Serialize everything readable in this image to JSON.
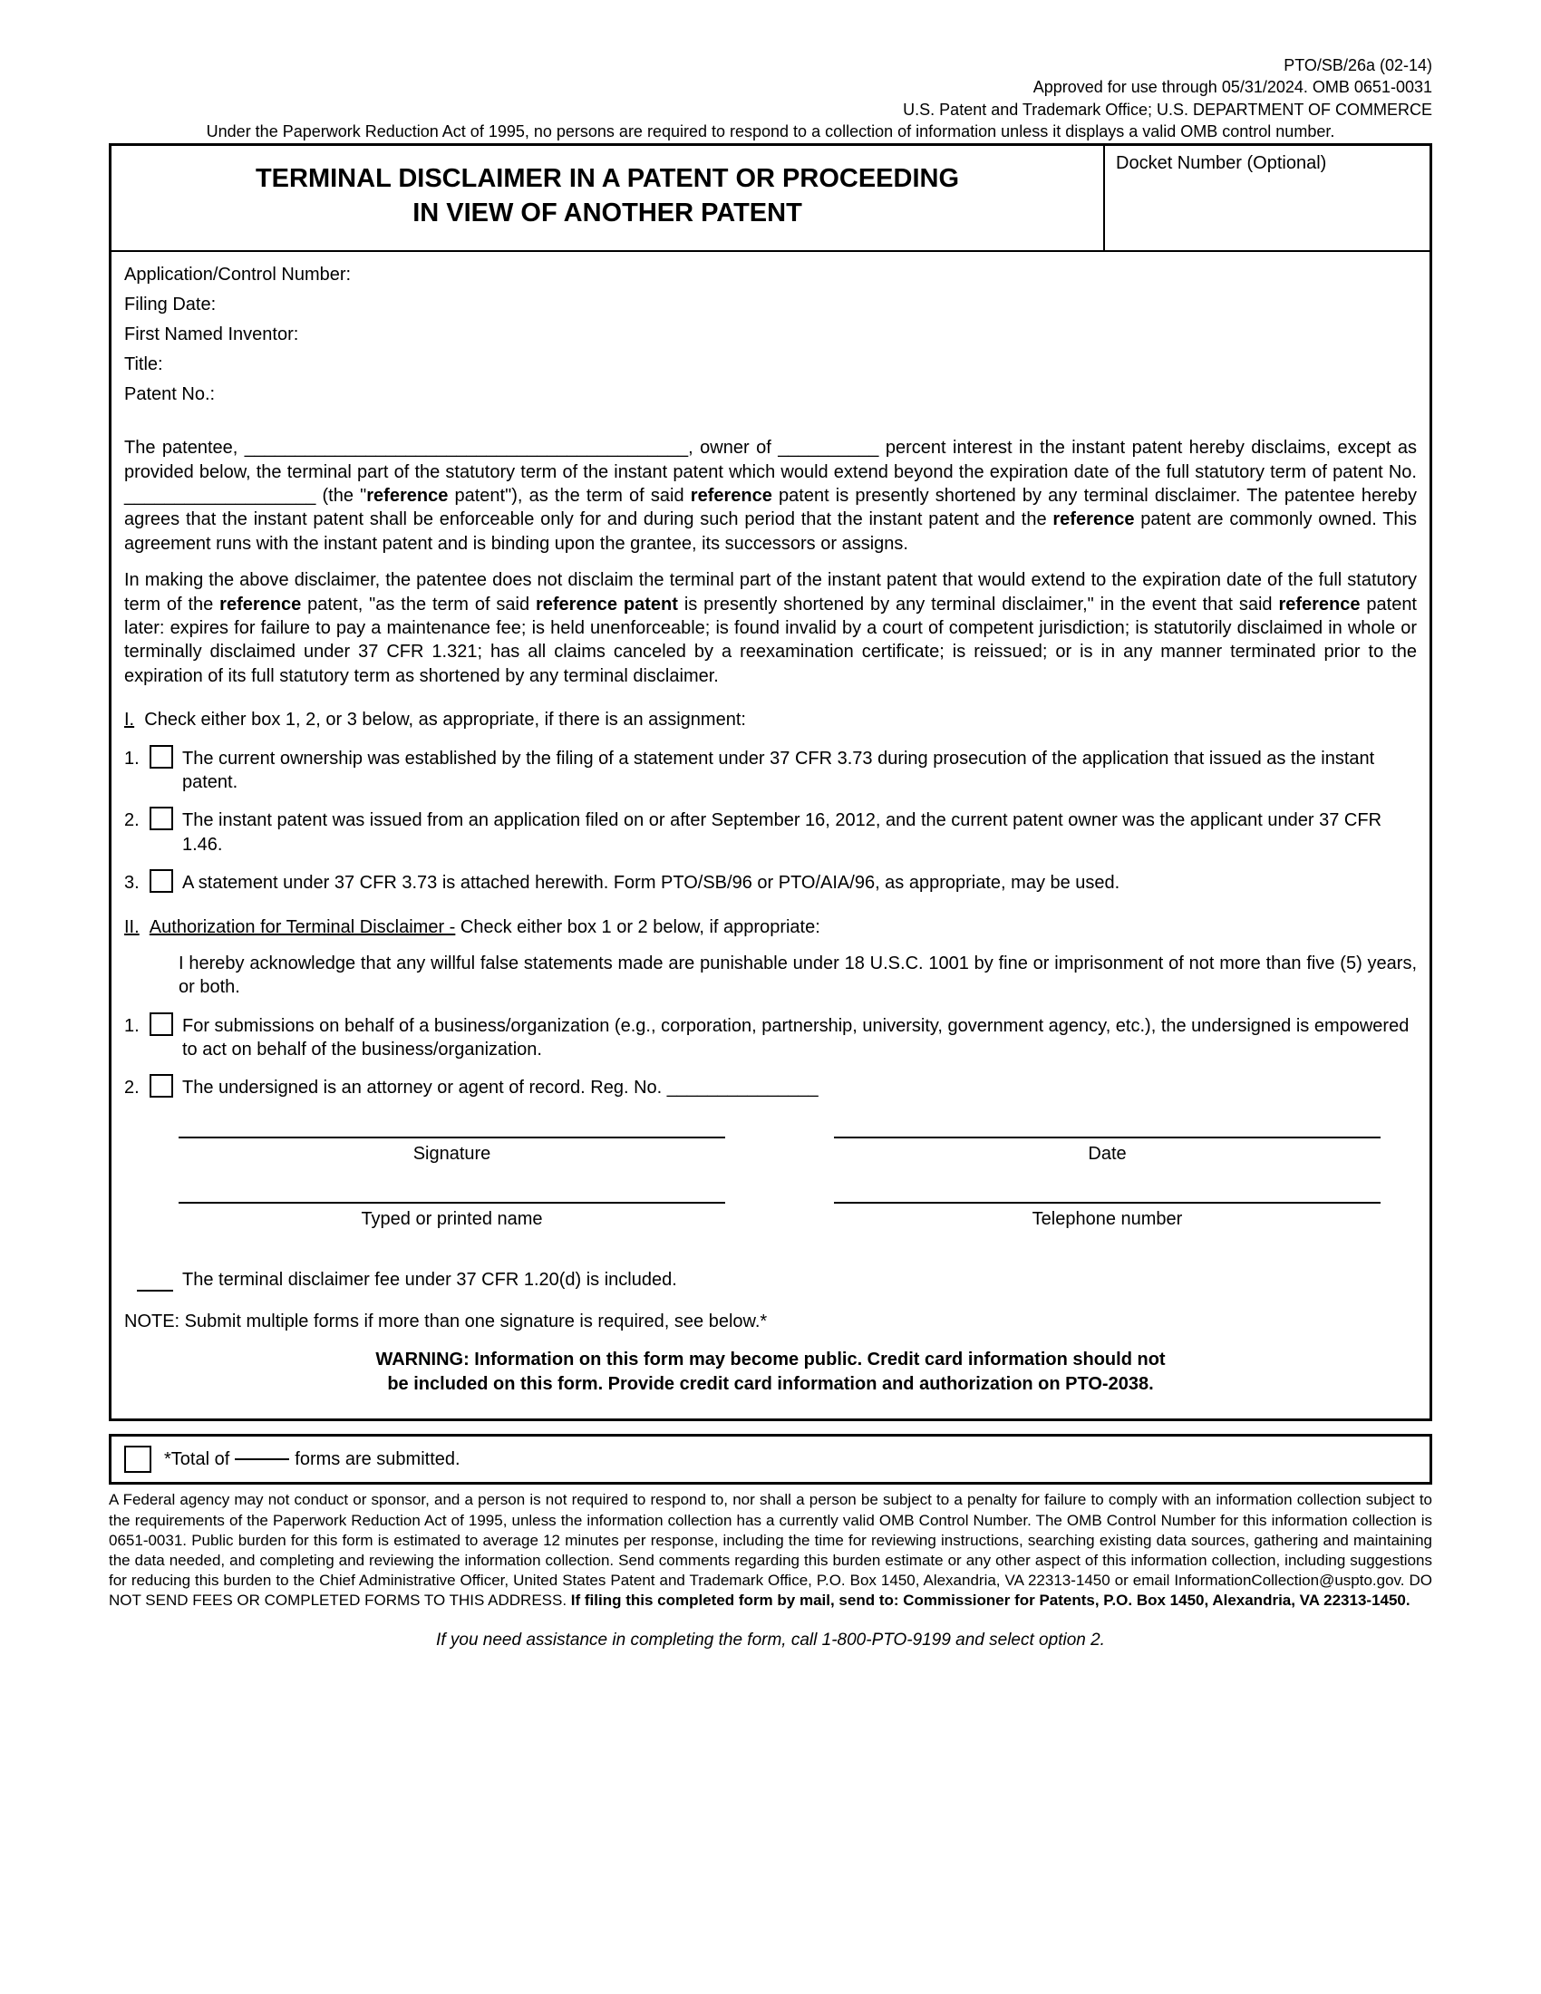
{
  "meta": {
    "form_id": "PTO/SB/26a (02-14)",
    "approved": "Approved for use through 05/31/2024. OMB 0651-0031",
    "office": "U.S. Patent and Trademark Office; U.S. DEPARTMENT OF COMMERCE",
    "pra": "Under the Paperwork Reduction Act of 1995, no persons are required to respond to a collection of information unless it displays a valid OMB control number."
  },
  "title": {
    "line1": "TERMINAL DISCLAIMER IN A PATENT OR PROCEEDING",
    "line2": "IN VIEW OF ANOTHER PATENT"
  },
  "docket_label": "Docket Number (Optional)",
  "fields": {
    "app": "Application/Control Number:",
    "filing": "Filing Date:",
    "inventor": "First Named Inventor:",
    "titlef": "Title:",
    "patent": "Patent No.:"
  },
  "para1_a": "The patentee, ____________________________________________, owner of __________ percent interest in the instant patent hereby disclaims, except as provided below, the terminal part of the statutory term of the instant patent which would extend beyond the expiration date of the full statutory term of patent No. ___________________ (the \"",
  "para1_ref": "reference",
  "para1_b": " patent\"), as the term of said ",
  "para1_c": " patent is presently shortened by any terminal disclaimer. The patentee hereby agrees that the instant patent shall be enforceable only for and during such period that the instant patent and the ",
  "para1_d": " patent are commonly owned. This agreement runs with the instant patent and is binding upon the grantee, its successors or assigns.",
  "para2_a": "In making the above disclaimer, the patentee does not disclaim the terminal part of the instant patent that would extend to the expiration date of the full statutory term of the ",
  "para2_b": " patent, \"as the term of said ",
  "para2_refpat": "reference patent",
  "para2_c": " is presently shortened by any terminal disclaimer,\" in the event that said ",
  "para2_d": " patent later: expires for failure to pay a maintenance fee; is held unenforceable; is found invalid by a court of competent jurisdiction; is statutorily disclaimed in whole or terminally disclaimed under 37 CFR 1.321; has all claims canceled by a reexamination certificate; is reissued; or is in any manner terminated prior to the expiration of its full statutory term as shortened by any terminal disclaimer.",
  "sectionI_head": "Check either box 1, 2, or 3 below, as appropriate, if there is an assignment:",
  "sectionI": {
    "opt1": "The current ownership was established by the filing of a statement under 37 CFR 3.73 during prosecution of the application that issued as the instant patent.",
    "opt2": "The instant patent was issued from an application filed on or after September 16, 2012, and the current patent owner was the applicant under 37 CFR 1.46.",
    "opt3": "A statement under 37 CFR 3.73 is attached herewith.  Form PTO/SB/96 or PTO/AIA/96, as appropriate, may be used."
  },
  "sectionII_head_u": "Authorization for Terminal Disclaimer -",
  "sectionII_head_rest": "  Check either box 1 or 2 below, if appropriate:",
  "sectionII_ack": "I hereby acknowledge that any willful false statements made are punishable under 18 U.S.C. 1001 by fine or imprisonment of not more than five (5) years, or both.",
  "sectionII": {
    "opt1": "For submissions on behalf of a business/organization (e.g., corporation, partnership, university, government agency, etc.), the undersigned is empowered to act on behalf of the business/organization.",
    "opt2": "The undersigned is an attorney or agent of record. Reg. No. _______________"
  },
  "sig": {
    "signature": "Signature",
    "date": "Date",
    "typed": "Typed or printed name",
    "phone": "Telephone number"
  },
  "fee": "The terminal disclaimer fee under 37 CFR 1.20(d) is included.",
  "note": "NOTE:  Submit multiple forms if more than one signature is required, see below.*",
  "warning1": "WARNING:  Information on this form may become public. Credit card information should not",
  "warning2": "be included on this form. Provide credit card information and authorization on PTO-2038.",
  "total_a": "*Total of",
  "total_b": "forms are submitted.",
  "privacy_a": "A Federal agency may not conduct or sponsor, and a person is not required to respond to, nor shall a person be subject to a penalty for failure to comply with an information collection subject to the requirements of the Paperwork Reduction Act of 1995, unless the information collection has a currently valid OMB Control Number. The OMB Control Number for this information collection is 0651-0031. Public burden for this form is estimated to average 12 minutes per response, including the time for reviewing instructions, searching existing data sources, gathering and maintaining the data needed, and completing and reviewing the information collection. Send comments regarding this burden estimate or any other aspect of this information collection, including suggestions for reducing this burden to the Chief Administrative Officer, United States Patent and Trademark Office, P.O. Box 1450, Alexandria, VA 22313-1450 or email InformationCollection@uspto.gov. DO NOT SEND FEES OR COMPLETED FORMS TO THIS ADDRESS. ",
  "privacy_b": "If filing this completed form by mail, send to: Commissioner for Patents, P.O. Box 1450, Alexandria, VA 22313-1450.",
  "assist": "If you need assistance in completing the form, call 1-800-PTO-9199 and select option 2.",
  "roman": {
    "I": "I.",
    "II": "II."
  },
  "nums": {
    "n1": "1.",
    "n2": "2.",
    "n3": "3."
  }
}
